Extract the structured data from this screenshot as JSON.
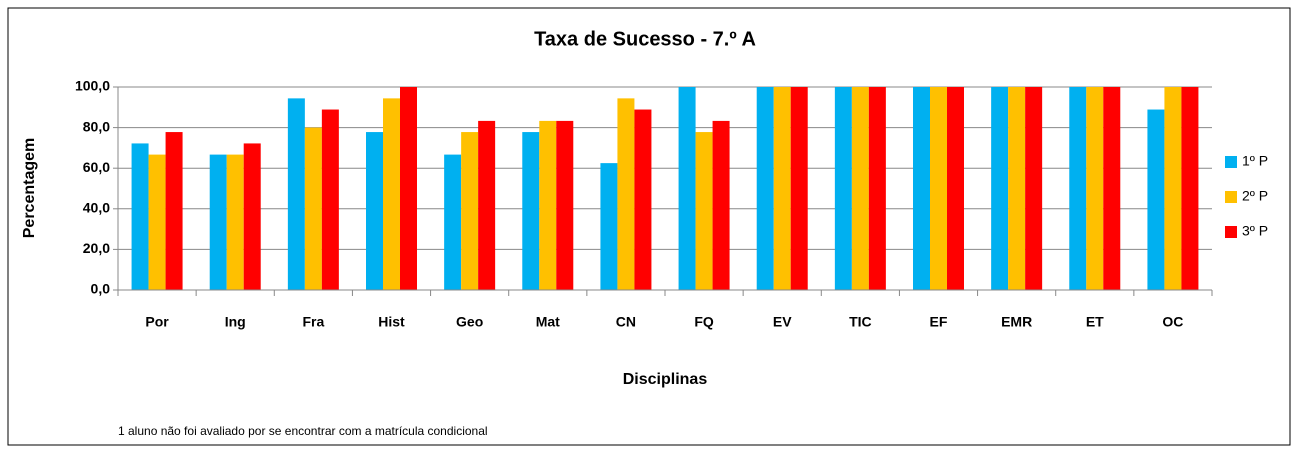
{
  "chart_data": {
    "type": "bar",
    "title": "Taxa de Sucesso - 7.º A",
    "x_label": "Disciplinas",
    "y_label": "Percentagem",
    "note": "1 aluno não foi avaliado por se encontrar com a matrícula condicional",
    "categories": [
      "Por",
      "Ing",
      "Fra",
      "Hist",
      "Geo",
      "Mat",
      "CN",
      "FQ",
      "EV",
      "TIC",
      "EF",
      "EMR",
      "ET",
      "OC"
    ],
    "series": [
      {
        "name": "1º P",
        "color": "#00b0f0",
        "values": [
          72.2,
          66.7,
          94.4,
          77.8,
          66.7,
          77.8,
          62.5,
          100,
          100,
          100,
          100,
          100,
          100,
          88.9
        ]
      },
      {
        "name": "2º P",
        "color": "#ffc000",
        "values": [
          66.7,
          66.7,
          80.0,
          94.4,
          77.8,
          83.3,
          94.4,
          77.8,
          100,
          100,
          100,
          100,
          100,
          100
        ]
      },
      {
        "name": "3º P",
        "color": "#ff0000",
        "values": [
          77.8,
          72.2,
          88.9,
          100,
          83.3,
          83.3,
          88.9,
          83.3,
          100,
          100,
          100,
          100,
          100,
          100
        ]
      }
    ],
    "ylim": [
      0,
      100
    ],
    "yticks": [
      {
        "value": 0,
        "label": "0,0"
      },
      {
        "value": 20,
        "label": "20,0"
      },
      {
        "value": 40,
        "label": "40,0"
      },
      {
        "value": 60,
        "label": "60,0"
      },
      {
        "value": 80,
        "label": "80,0"
      },
      {
        "value": 100,
        "label": "100,0"
      }
    ],
    "grid": true,
    "legend": "right"
  }
}
